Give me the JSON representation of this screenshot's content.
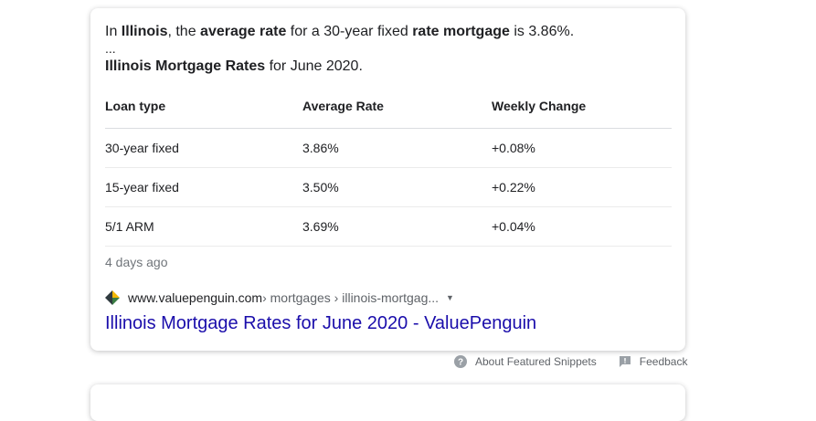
{
  "snippet": {
    "p1": "In ",
    "b1": "Illinois",
    "p2": ", the ",
    "b2": "average rate",
    "p3": " for a 30-year fixed ",
    "b3": "rate mortgage",
    "p4": " is 3.86%.",
    "ellipsis": "...",
    "heading_bold": "Illinois Mortgage Rates",
    "heading_rest": " for June 2020."
  },
  "table": {
    "headers": [
      "Loan type",
      "Average Rate",
      "Weekly Change"
    ],
    "rows": [
      [
        "30-year fixed",
        "3.86%",
        "+0.08%"
      ],
      [
        "15-year fixed",
        "3.50%",
        "+0.22%"
      ],
      [
        "5/1 ARM",
        "3.69%",
        "+0.04%"
      ]
    ]
  },
  "date": "4 days ago",
  "source": {
    "domain": "www.valuepenguin.com",
    "path": " › mortgages › illinois-mortgag...",
    "favicon": "valuepenguin-logo-icon",
    "caret": "▼"
  },
  "result_title": "Illinois Mortgage Rates for June 2020 - ValuePenguin",
  "footer": {
    "about_label": "About Featured Snippets",
    "feedback_label": "Feedback",
    "about_icon": "help-circle-icon",
    "feedback_icon": "feedback-flag-icon"
  },
  "colors": {
    "link": "#1a0dab",
    "muted": "#70757a",
    "text": "#202124"
  }
}
